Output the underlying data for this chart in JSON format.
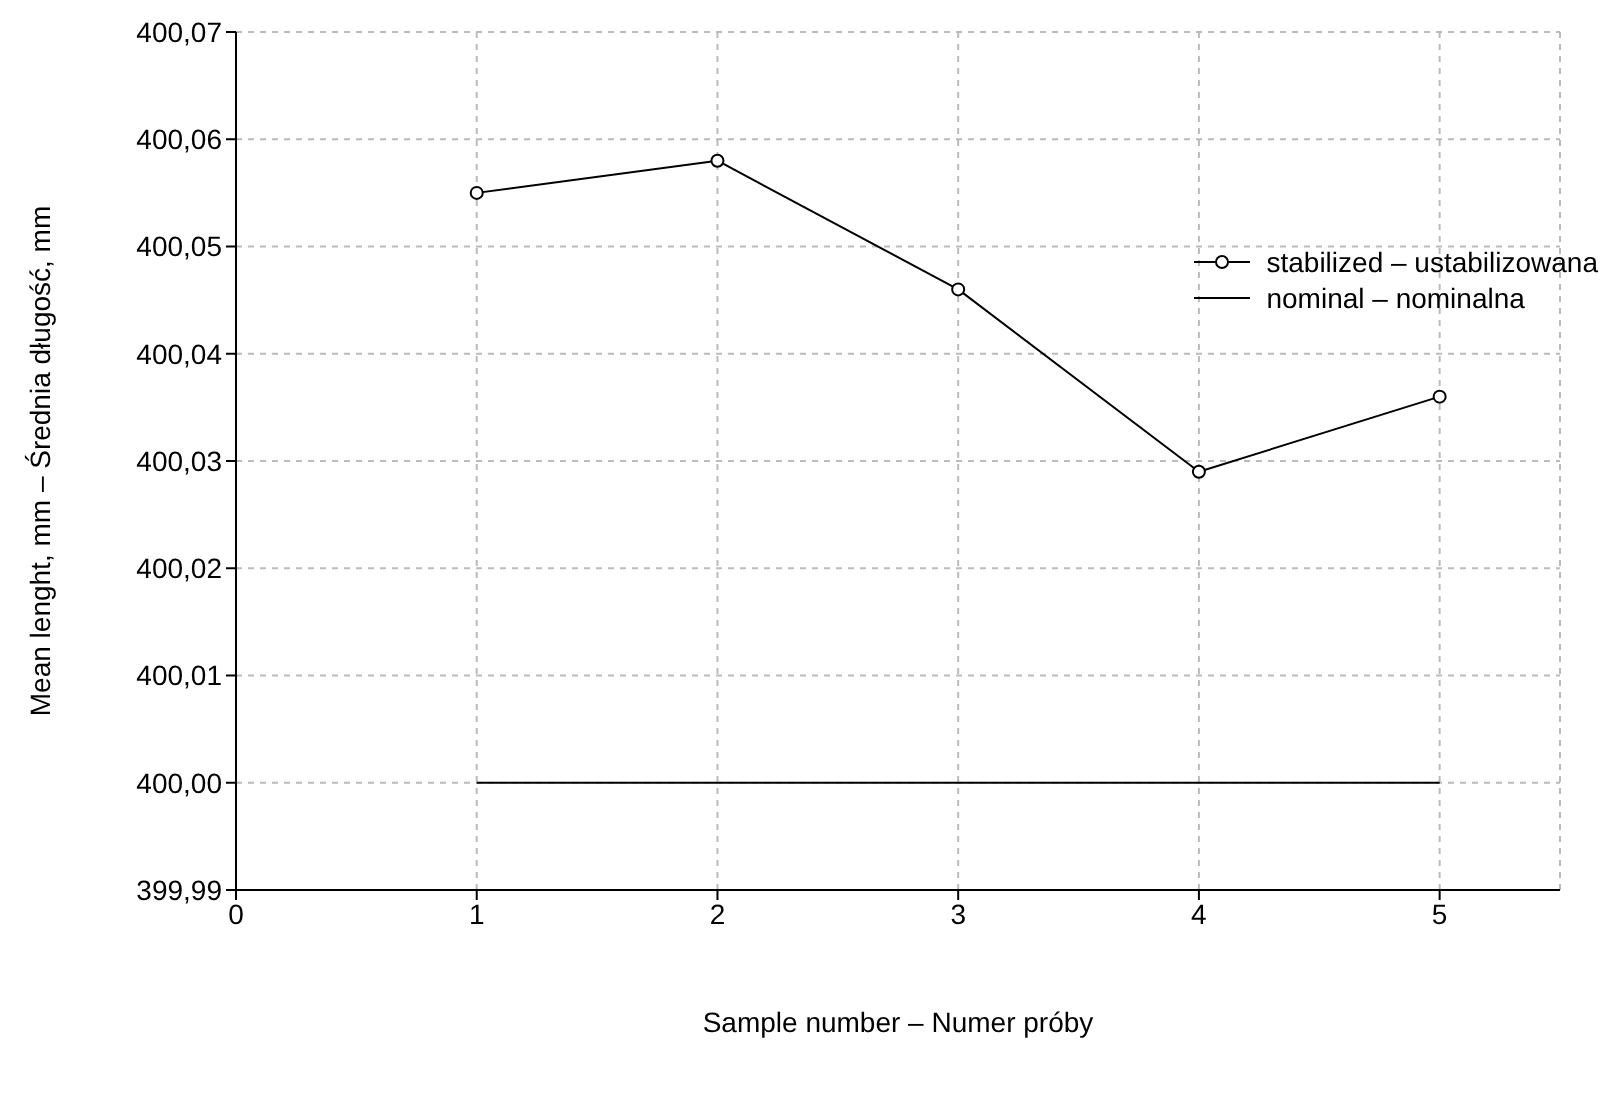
{
  "chart_data": {
    "type": "line",
    "xlabel": "Sample number – Numer próby",
    "ylabel": "Mean lenght, mm – Średnia długość, mm",
    "xlim": [
      0,
      5.5
    ],
    "xticks": [
      0,
      1,
      2,
      3,
      4,
      5
    ],
    "ylim": [
      399.99,
      400.07
    ],
    "yticks": [
      {
        "value": 399.99,
        "label": "399,99"
      },
      {
        "value": 400.0,
        "label": "400,00"
      },
      {
        "value": 400.01,
        "label": "400,01"
      },
      {
        "value": 400.02,
        "label": "400,02"
      },
      {
        "value": 400.03,
        "label": "400,03"
      },
      {
        "value": 400.04,
        "label": "400,04"
      },
      {
        "value": 400.05,
        "label": "400,05"
      },
      {
        "value": 400.06,
        "label": "400,06"
      },
      {
        "value": 400.07,
        "label": "400,07"
      }
    ],
    "grid": true,
    "legend": "top right",
    "series": [
      {
        "name": "stabilized – ustabilizowana",
        "color": "#000000",
        "marker": "circle",
        "x": [
          1,
          2,
          3,
          4,
          5
        ],
        "values": [
          400.055,
          400.058,
          400.046,
          400.029,
          400.036
        ]
      },
      {
        "name": "nominal – nominalna",
        "color": "#000000",
        "marker": "none",
        "x": [
          1,
          5
        ],
        "values": [
          400.0,
          400.0
        ]
      }
    ]
  }
}
